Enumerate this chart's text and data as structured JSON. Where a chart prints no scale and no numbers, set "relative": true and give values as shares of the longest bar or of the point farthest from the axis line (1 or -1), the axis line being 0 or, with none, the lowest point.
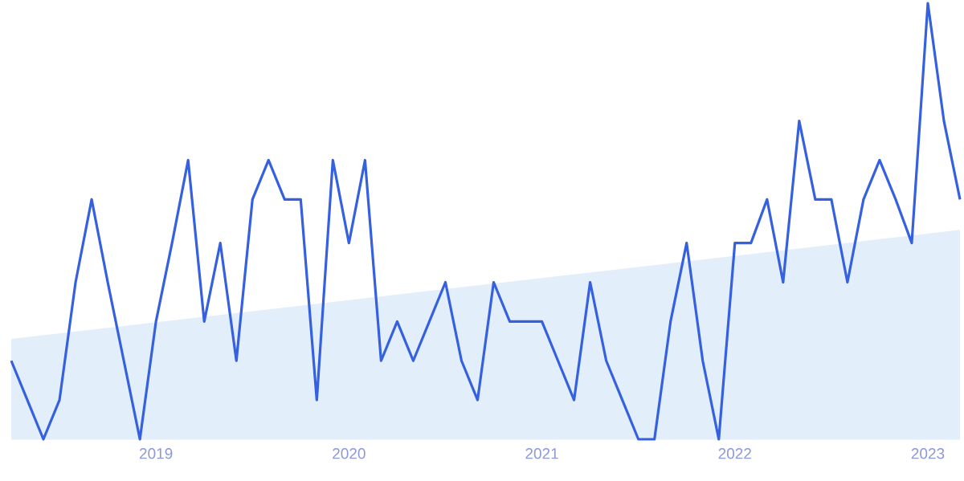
{
  "chart_data": {
    "type": "line",
    "relative": true,
    "x": [
      "2018-04",
      "2018-05",
      "2018-06",
      "2018-07",
      "2018-08",
      "2018-09",
      "2018-10",
      "2018-11",
      "2018-12",
      "2019-01",
      "2019-02",
      "2019-03",
      "2019-04",
      "2019-05",
      "2019-06",
      "2019-07",
      "2019-08",
      "2019-09",
      "2019-10",
      "2019-11",
      "2019-12",
      "2020-01",
      "2020-02",
      "2020-03",
      "2020-04",
      "2020-05",
      "2020-06",
      "2020-07",
      "2020-08",
      "2020-09",
      "2020-10",
      "2020-11",
      "2020-12",
      "2021-01",
      "2021-02",
      "2021-03",
      "2021-04",
      "2021-05",
      "2021-06",
      "2021-07",
      "2021-08",
      "2021-09",
      "2021-10",
      "2021-11",
      "2021-12",
      "2022-01",
      "2022-02",
      "2022-03",
      "2022-04",
      "2022-05",
      "2022-06",
      "2022-07",
      "2022-08",
      "2022-09",
      "2022-10",
      "2022-11",
      "2022-12",
      "2023-01",
      "2023-02",
      "2023-03"
    ],
    "xlim": [
      "2018-04",
      "2023-03"
    ],
    "xticks": [
      "2019",
      "2020",
      "2021",
      "2022",
      "2023"
    ],
    "series": [
      {
        "type": "area",
        "color": "#e3eefb",
        "x": [
          "2018-04",
          "2023-03"
        ],
        "values": [
          0.23,
          0.48
        ]
      },
      {
        "color": "#3560e0",
        "values": [
          0.18,
          0.09,
          0,
          0.09,
          0.36,
          0.55,
          0.36,
          0.18,
          0,
          0.27,
          0.45,
          0.64,
          0.27,
          0.45,
          0.18,
          0.55,
          0.64,
          0.55,
          0.55,
          0.09,
          0.64,
          0.45,
          0.64,
          0.18,
          0.27,
          0.18,
          0.27,
          0.36,
          0.18,
          0.09,
          0.36,
          0.27,
          0.27,
          0.27,
          0.18,
          0.09,
          0.36,
          0.18,
          0.09,
          0,
          0,
          0.27,
          0.45,
          0.18,
          0,
          0.45,
          0.45,
          0.55,
          0.36,
          0.73,
          0.55,
          0.55,
          0.36,
          0.55,
          0.64,
          0.55,
          0.45,
          1,
          0.73,
          0.55
        ]
      }
    ]
  }
}
